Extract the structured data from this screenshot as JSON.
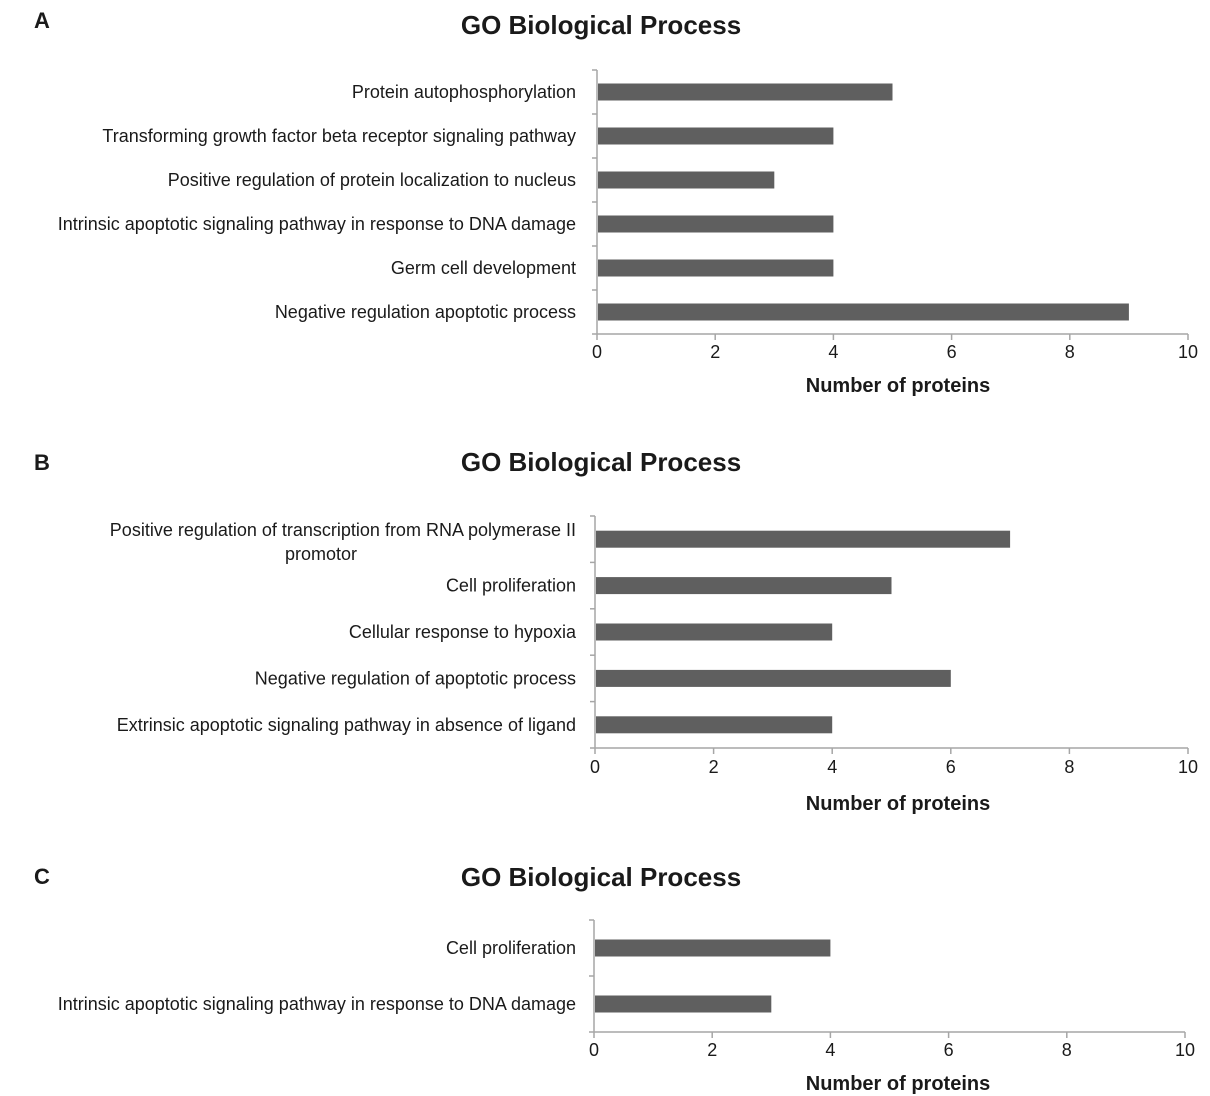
{
  "colors": {
    "bar": "#5f5f5f",
    "axis": "#a6a6a6",
    "text": "#1a1a1a"
  },
  "chart_data": [
    {
      "type": "bar",
      "orientation": "horizontal",
      "panel": "A",
      "title": "GO Biological Process",
      "xlabel": "Number of proteins",
      "xlim": [
        0,
        10
      ],
      "xticks": [
        "0",
        "2",
        "4",
        "6",
        "8",
        "10"
      ],
      "categories": [
        [
          "Protein autophosphorylation"
        ],
        [
          "Transforming growth factor beta receptor signaling pathway"
        ],
        [
          "Positive regulation of protein localization to nucleus"
        ],
        [
          "Intrinsic apoptotic signaling pathway in response to DNA damage"
        ],
        [
          "Germ cell development"
        ],
        [
          "Negative regulation apoptotic process"
        ]
      ],
      "values": [
        5,
        4,
        3,
        4,
        4,
        9
      ]
    },
    {
      "type": "bar",
      "orientation": "horizontal",
      "panel": "B",
      "title": "GO Biological Process",
      "xlabel": "Number of proteins",
      "xlim": [
        0,
        10
      ],
      "xticks": [
        "0",
        "2",
        "4",
        "6",
        "8",
        "10"
      ],
      "categories": [
        [
          "Positive regulation of transcription from RNA polymerase II",
          "promotor"
        ],
        [
          "Cell proliferation"
        ],
        [
          "Cellular response to hypoxia"
        ],
        [
          "Negative regulation of apoptotic process"
        ],
        [
          "Extrinsic apoptotic signaling pathway in absence of ligand"
        ]
      ],
      "values": [
        7,
        5,
        4,
        6,
        4
      ]
    },
    {
      "type": "bar",
      "orientation": "horizontal",
      "panel": "C",
      "title": "GO Biological Process",
      "xlabel": "Number of proteins",
      "xlim": [
        0,
        10
      ],
      "xticks": [
        "0",
        "2",
        "4",
        "6",
        "8",
        "10"
      ],
      "categories": [
        [
          "Cell proliferation"
        ],
        [
          "Intrinsic apoptotic signaling pathway in response to DNA damage"
        ]
      ],
      "values": [
        4,
        3
      ]
    }
  ]
}
